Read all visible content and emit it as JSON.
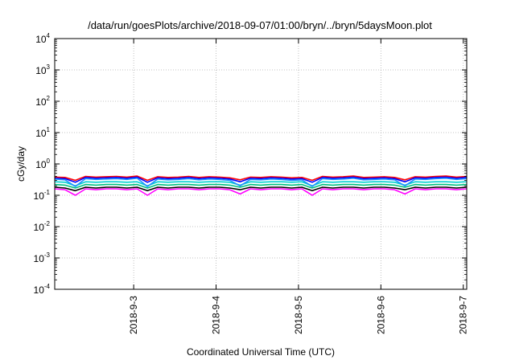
{
  "chart_data": {
    "type": "line",
    "title": "/data/run/goesPlots/archive/2018-09-07/01:00/bryn/../bryn/5daysMoon.plot",
    "xlabel": "Coordinated Universal Time (UTC)",
    "ylabel": "cGy/day",
    "yscale": "log",
    "ylim": [
      0.0001,
      10000
    ],
    "y_ticks": [
      {
        "base": "10",
        "exp": "-4"
      },
      {
        "base": "10",
        "exp": "-3"
      },
      {
        "base": "10",
        "exp": "-2"
      },
      {
        "base": "10",
        "exp": "-1"
      },
      {
        "base": "10",
        "exp": "0"
      },
      {
        "base": "10",
        "exp": "1"
      },
      {
        "base": "10",
        "exp": "2"
      },
      {
        "base": "10",
        "exp": "3"
      },
      {
        "base": "10",
        "exp": "4"
      }
    ],
    "x_ticks": [
      "2018-9-3",
      "2018-9-4",
      "2018-9-5",
      "2018-9-6",
      "2018-9-7"
    ],
    "xlim": [
      "2018-09-02 01:00",
      "2018-09-07 01:00"
    ],
    "grid": true,
    "x_sample_hours": 3,
    "series": [
      {
        "color": "#ff00ff",
        "values": [
          0.16,
          0.15,
          0.1,
          0.16,
          0.15,
          0.16,
          0.16,
          0.15,
          0.16,
          0.1,
          0.16,
          0.15,
          0.16,
          0.16,
          0.15,
          0.16,
          0.16,
          0.15,
          0.11,
          0.16,
          0.15,
          0.16,
          0.16,
          0.15,
          0.16,
          0.1,
          0.16,
          0.15,
          0.16,
          0.16,
          0.15,
          0.16,
          0.16,
          0.15,
          0.11,
          0.16,
          0.15,
          0.16,
          0.16,
          0.15,
          0.16
        ]
      },
      {
        "color": "#000000",
        "values": [
          0.18,
          0.17,
          0.14,
          0.18,
          0.17,
          0.18,
          0.18,
          0.17,
          0.18,
          0.14,
          0.18,
          0.17,
          0.18,
          0.18,
          0.17,
          0.18,
          0.18,
          0.17,
          0.15,
          0.18,
          0.17,
          0.18,
          0.18,
          0.17,
          0.18,
          0.14,
          0.18,
          0.17,
          0.18,
          0.18,
          0.17,
          0.18,
          0.18,
          0.17,
          0.15,
          0.18,
          0.17,
          0.18,
          0.18,
          0.17,
          0.18
        ]
      },
      {
        "color": "#00c080",
        "values": [
          0.22,
          0.21,
          0.17,
          0.22,
          0.21,
          0.22,
          0.22,
          0.21,
          0.22,
          0.17,
          0.22,
          0.21,
          0.22,
          0.22,
          0.21,
          0.22,
          0.22,
          0.21,
          0.18,
          0.22,
          0.21,
          0.22,
          0.22,
          0.21,
          0.22,
          0.17,
          0.22,
          0.21,
          0.22,
          0.22,
          0.21,
          0.22,
          0.22,
          0.21,
          0.18,
          0.22,
          0.21,
          0.22,
          0.22,
          0.21,
          0.22
        ]
      },
      {
        "color": "#00d0d0",
        "values": [
          0.27,
          0.26,
          0.2,
          0.27,
          0.26,
          0.27,
          0.27,
          0.26,
          0.27,
          0.2,
          0.27,
          0.26,
          0.27,
          0.27,
          0.26,
          0.27,
          0.27,
          0.26,
          0.21,
          0.27,
          0.26,
          0.27,
          0.27,
          0.26,
          0.27,
          0.2,
          0.27,
          0.26,
          0.27,
          0.27,
          0.26,
          0.27,
          0.27,
          0.26,
          0.21,
          0.27,
          0.26,
          0.27,
          0.27,
          0.26,
          0.27
        ]
      },
      {
        "color": "#ff0000",
        "values": [
          0.38,
          0.37,
          0.3,
          0.4,
          0.38,
          0.39,
          0.4,
          0.38,
          0.41,
          0.3,
          0.39,
          0.37,
          0.38,
          0.4,
          0.37,
          0.39,
          0.38,
          0.36,
          0.31,
          0.38,
          0.37,
          0.39,
          0.38,
          0.36,
          0.37,
          0.3,
          0.4,
          0.38,
          0.39,
          0.41,
          0.37,
          0.38,
          0.39,
          0.37,
          0.31,
          0.39,
          0.38,
          0.4,
          0.41,
          0.38,
          0.4
        ]
      },
      {
        "color": "#0000ff",
        "values": [
          0.35,
          0.34,
          0.26,
          0.37,
          0.35,
          0.36,
          0.37,
          0.35,
          0.38,
          0.26,
          0.36,
          0.34,
          0.35,
          0.37,
          0.34,
          0.36,
          0.35,
          0.33,
          0.27,
          0.35,
          0.34,
          0.36,
          0.35,
          0.33,
          0.34,
          0.26,
          0.37,
          0.35,
          0.36,
          0.38,
          0.34,
          0.35,
          0.36,
          0.34,
          0.27,
          0.36,
          0.35,
          0.37,
          0.38,
          0.35,
          0.37
        ]
      },
      {
        "color": "#1e90ff",
        "values": [
          0.33,
          0.31,
          0.19,
          0.34,
          0.32,
          0.33,
          0.34,
          0.32,
          0.35,
          0.19,
          0.33,
          0.31,
          0.32,
          0.34,
          0.31,
          0.33,
          0.32,
          0.3,
          0.2,
          0.32,
          0.31,
          0.33,
          0.32,
          0.3,
          0.31,
          0.19,
          0.34,
          0.32,
          0.33,
          0.35,
          0.31,
          0.32,
          0.33,
          0.31,
          0.2,
          0.33,
          0.32,
          0.34,
          0.35,
          0.32,
          0.34
        ]
      }
    ]
  }
}
